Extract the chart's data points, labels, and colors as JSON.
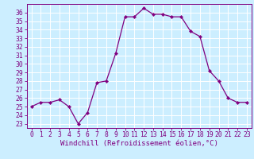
{
  "x": [
    0,
    1,
    2,
    3,
    4,
    5,
    6,
    7,
    8,
    9,
    10,
    11,
    12,
    13,
    14,
    15,
    16,
    17,
    18,
    19,
    20,
    21,
    22,
    23
  ],
  "y": [
    25.0,
    25.5,
    25.5,
    25.8,
    25.0,
    23.0,
    24.3,
    27.8,
    28.0,
    31.2,
    35.5,
    35.5,
    36.5,
    35.8,
    35.8,
    35.5,
    35.5,
    33.8,
    33.2,
    29.2,
    28.0,
    26.0,
    25.5,
    25.5
  ],
  "line_color": "#800080",
  "marker": "D",
  "marker_size": 2.2,
  "bg_color": "#cceeff",
  "grid_color": "#ffffff",
  "xlabel": "Windchill (Refroidissement éolien,°C)",
  "xlabel_fontsize": 6.5,
  "ylabel_ticks": [
    23,
    24,
    25,
    26,
    27,
    28,
    29,
    30,
    31,
    32,
    33,
    34,
    35,
    36
  ],
  "xticks": [
    0,
    1,
    2,
    3,
    4,
    5,
    6,
    7,
    8,
    9,
    10,
    11,
    12,
    13,
    14,
    15,
    16,
    17,
    18,
    19,
    20,
    21,
    22,
    23
  ],
  "ylim": [
    22.5,
    37.0
  ],
  "xlim": [
    -0.5,
    23.5
  ],
  "tick_fontsize": 5.8
}
